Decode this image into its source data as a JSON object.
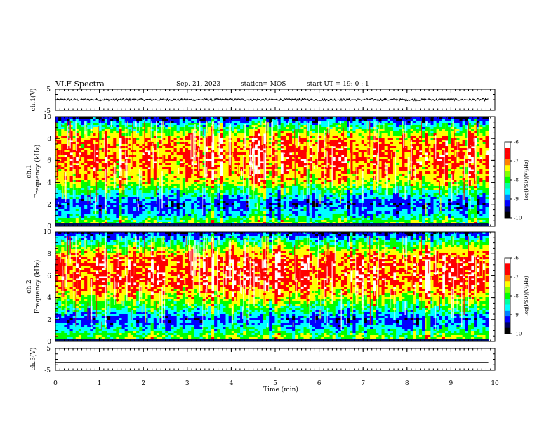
{
  "header": {
    "title": "VLF Spectra",
    "date": "Sep. 21, 2023",
    "station": "station= MOS",
    "start_time": "start  UT =   19: 0  : 1"
  },
  "chart_data": [
    {
      "type": "line",
      "name": "ch1-voltage",
      "ylabel": "ch.1(V)",
      "ylim": [
        -5,
        5
      ],
      "yticks": [
        "5",
        "-5"
      ],
      "xlim": [
        0,
        10
      ],
      "series": [
        {
          "x": [
            0,
            9.85
          ],
          "y": [
            0,
            0
          ],
          "color": "#000000",
          "noise": 0.5
        }
      ]
    },
    {
      "type": "heatmap",
      "name": "ch1-spectrogram",
      "ylabel": "ch.1\nFrequency (kHz)",
      "ylim": [
        0,
        10
      ],
      "yticks": [
        "0",
        "2",
        "4",
        "6",
        "8",
        "10"
      ],
      "xlim": [
        0,
        10
      ],
      "data_end_min": 9.85,
      "z_range": [
        -10,
        -6
      ],
      "colorbar_label": "log(PSD)(V²/Hz)",
      "colorbar_ticks": [
        "-6",
        "-7",
        "-8",
        "-9",
        "-10"
      ],
      "band_profile": [
        {
          "f_khz": 0,
          "log_psd": -9.6
        },
        {
          "f_khz": 0.3,
          "log_psd": -7.4
        },
        {
          "f_khz": 1.0,
          "log_psd": -8.4
        },
        {
          "f_khz": 2.0,
          "log_psd": -9.0
        },
        {
          "f_khz": 3.0,
          "log_psd": -8.2
        },
        {
          "f_khz": 4.2,
          "log_psd": -7.0
        },
        {
          "f_khz": 6.0,
          "log_psd": -6.5
        },
        {
          "f_khz": 8.0,
          "log_psd": -6.8
        },
        {
          "f_khz": 9.0,
          "log_psd": -7.9
        },
        {
          "f_khz": 9.6,
          "log_psd": -8.8
        },
        {
          "f_khz": 10,
          "log_psd": -9.6
        }
      ]
    },
    {
      "type": "heatmap",
      "name": "ch2-spectrogram",
      "ylabel": "ch.2\nFrequency (kHz)",
      "ylim": [
        0,
        10
      ],
      "yticks": [
        "0",
        "2",
        "4",
        "6",
        "8",
        "10"
      ],
      "xlim": [
        0,
        10
      ],
      "data_end_min": 9.85,
      "z_range": [
        -10,
        -6
      ],
      "colorbar_label": "log(PSD)(V²/Hz)",
      "colorbar_ticks": [
        "-6",
        "-7",
        "-8",
        "-9",
        "-10"
      ],
      "band_profile": [
        {
          "f_khz": 0,
          "log_psd": -9.6
        },
        {
          "f_khz": 0.3,
          "log_psd": -7.4
        },
        {
          "f_khz": 1.0,
          "log_psd": -8.2
        },
        {
          "f_khz": 2.0,
          "log_psd": -8.9
        },
        {
          "f_khz": 3.0,
          "log_psd": -8.0
        },
        {
          "f_khz": 4.2,
          "log_psd": -7.0
        },
        {
          "f_khz": 5.5,
          "log_psd": -6.4
        },
        {
          "f_khz": 7.5,
          "log_psd": -6.5
        },
        {
          "f_khz": 8.5,
          "log_psd": -7.3
        },
        {
          "f_khz": 9.3,
          "log_psd": -8.3
        },
        {
          "f_khz": 10,
          "log_psd": -9.3
        }
      ]
    },
    {
      "type": "line",
      "name": "ch3-voltage",
      "ylabel": "ch.3(V)",
      "ylim": [
        -5,
        5
      ],
      "yticks": [
        "5",
        "-5"
      ],
      "xlim": [
        0,
        10
      ],
      "series": [
        {
          "x": [
            0,
            9.85
          ],
          "y": [
            -1.5,
            -1.5
          ],
          "color": "#000000",
          "noise": 0
        }
      ]
    }
  ],
  "x_axis": {
    "label": "Time (min)",
    "ticks": [
      "0",
      "1",
      "2",
      "3",
      "4",
      "5",
      "6",
      "7",
      "8",
      "9",
      "10"
    ]
  },
  "colormap": [
    "#000000",
    "#0000ff",
    "#00ffff",
    "#00ff00",
    "#ffff00",
    "#ff0000",
    "#ffffff"
  ]
}
